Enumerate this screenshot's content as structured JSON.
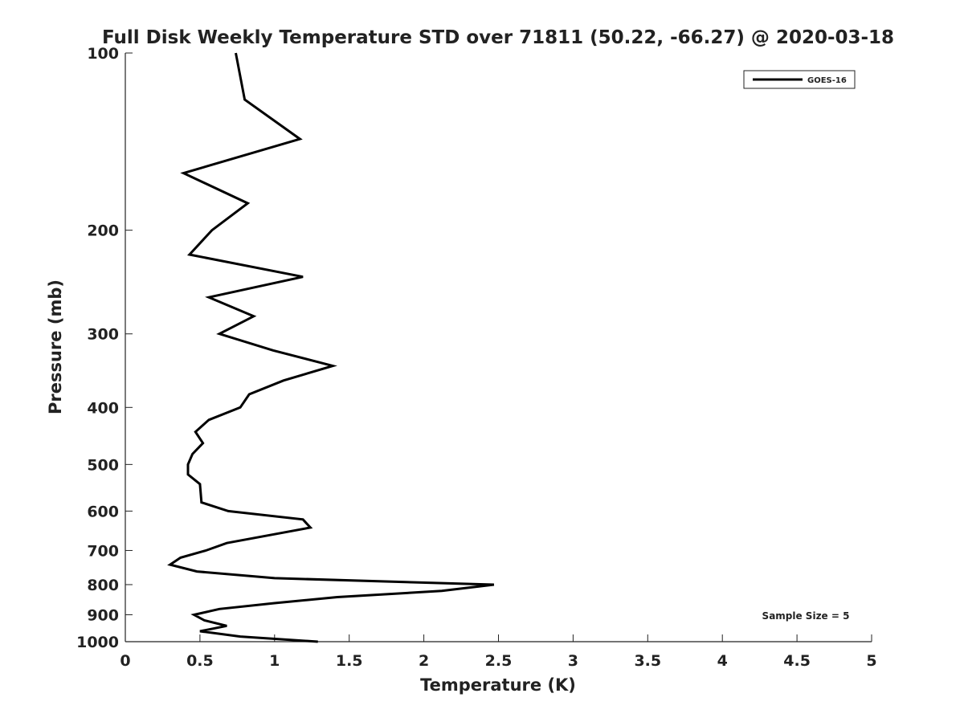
{
  "chart_data": {
    "type": "line",
    "title": "Full Disk Weekly Temperature STD over 71811 (50.22, -66.27) @ 2020-03-18",
    "xlabel": "Temperature (K)",
    "ylabel": "Pressure (mb)",
    "xlim": [
      0,
      5
    ],
    "ylim": [
      100,
      1000
    ],
    "yscale": "log",
    "yreversed": true,
    "grid": false,
    "xticks": [
      0,
      0.5,
      1,
      1.5,
      2,
      2.5,
      3,
      3.5,
      4,
      4.5,
      5
    ],
    "xtick_labels": [
      "0",
      "0.5",
      "1",
      "1.5",
      "2",
      "2.5",
      "3",
      "3.5",
      "4",
      "4.5",
      "5"
    ],
    "yticks": [
      100,
      200,
      300,
      400,
      500,
      600,
      700,
      800,
      900,
      1000
    ],
    "ytick_labels": [
      "100",
      "200",
      "300",
      "400",
      "500",
      "600",
      "700",
      "800",
      "900",
      "1000"
    ],
    "legend_position": "top-right",
    "annotation": "Sample Size = 5",
    "series": [
      {
        "name": "GOES-16",
        "color": "#000000",
        "pressure": [
          100,
          120,
          140,
          160,
          180,
          200,
          220,
          240,
          260,
          280,
          300,
          320,
          340,
          360,
          380,
          400,
          420,
          440,
          460,
          480,
          500,
          520,
          540,
          580,
          600,
          620,
          640,
          680,
          700,
          720,
          740,
          760,
          780,
          800,
          820,
          840,
          860,
          880,
          900,
          920,
          940,
          960,
          980,
          1000
        ],
        "temperature": [
          0.74,
          0.8,
          1.17,
          0.39,
          0.82,
          0.58,
          0.43,
          1.19,
          0.56,
          0.86,
          0.63,
          0.99,
          1.39,
          1.06,
          0.83,
          0.77,
          0.56,
          0.47,
          0.52,
          0.45,
          0.42,
          0.42,
          0.5,
          0.51,
          0.69,
          1.19,
          1.24,
          0.68,
          0.54,
          0.37,
          0.3,
          0.48,
          1.0,
          2.47,
          2.12,
          1.42,
          1.0,
          0.63,
          0.46,
          0.53,
          0.68,
          0.5,
          0.77,
          1.29
        ]
      }
    ]
  }
}
